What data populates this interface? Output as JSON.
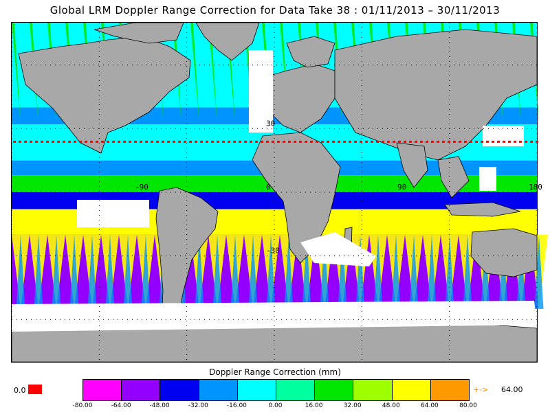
{
  "title": "Global LRM Doppler Range Correction for Data Take 38 : 01/11/2013 – 30/11/2013",
  "map": {
    "grid_labels": [
      {
        "text": "30",
        "lon": 0,
        "lat": 30
      },
      {
        "text": "-90",
        "lon": -90,
        "lat": 0
      },
      {
        "text": "0",
        "lon": 0,
        "lat": 0
      },
      {
        "text": "90",
        "lon": 90,
        "lat": 0
      },
      {
        "text": "180",
        "lon": 180,
        "lat": 0
      },
      {
        "text": "-30",
        "lon": 0,
        "lat": -30
      }
    ],
    "land_color": "#a8a8a8",
    "nodata_color": "#ffffff",
    "boundary_color": "#000000"
  },
  "colorbar": {
    "title": "Doppler Range Correction (mm)",
    "ticks": [
      "-80.00",
      "-64.00",
      "-48.00",
      "-32.00",
      "-16.00",
      "0.00",
      "16.00",
      "32.00",
      "48.00",
      "64.00",
      "80.00"
    ],
    "colors": [
      "#ff00ff",
      "#9400ff",
      "#0000f0",
      "#0094ff",
      "#00ffff",
      "#00ff9e",
      "#00e600",
      "#9eff00",
      "#ffff00",
      "#ff9900"
    ],
    "undefined_label": "0.0",
    "undefined_color": "#ff0000",
    "overflow_arrow": "+->",
    "overflow_value": "64.00",
    "overflow_color": "#ff8c00"
  }
}
